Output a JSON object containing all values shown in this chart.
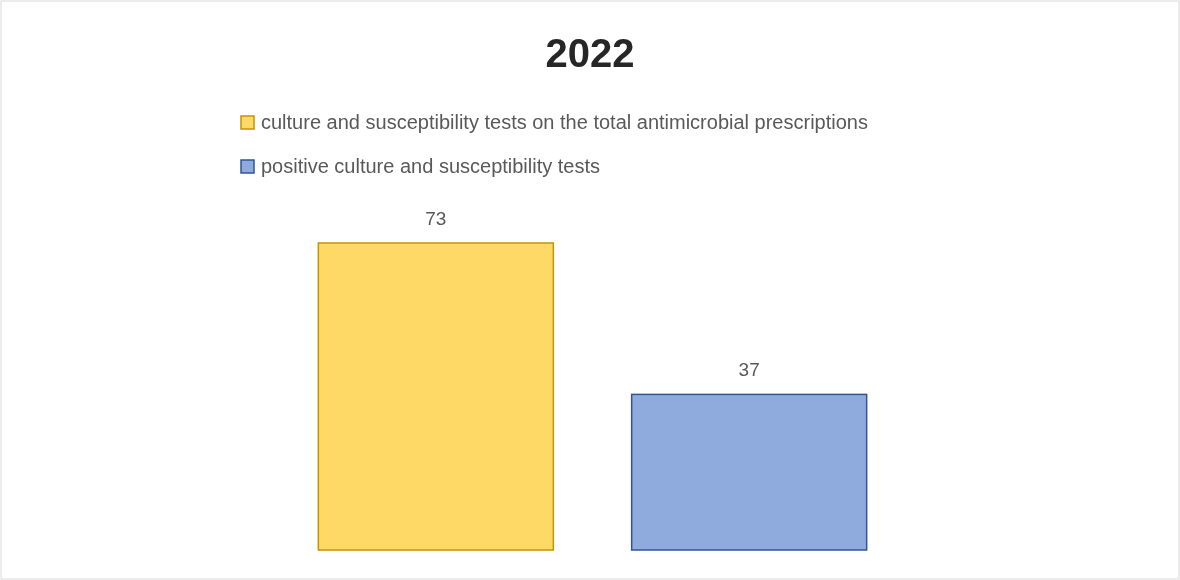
{
  "chart_data": {
    "type": "bar",
    "title": "2022",
    "categories": [
      null
    ],
    "series": [
      {
        "name": "culture and susceptibility tests on the total antimicrobial prescriptions",
        "color": "#ffd966",
        "values": [
          73
        ]
      },
      {
        "name": "positive culture and susceptibility tests",
        "color": "#8faadc",
        "values": [
          37
        ]
      }
    ],
    "data_labels": true,
    "legend": "top"
  }
}
